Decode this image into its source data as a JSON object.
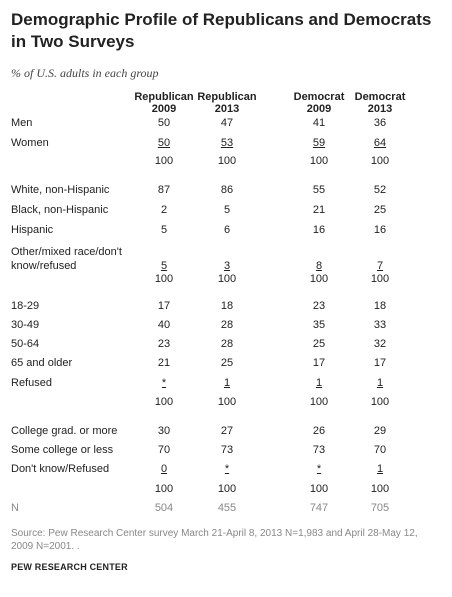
{
  "chart_data": {
    "type": "table",
    "title": "Demographic Profile of Republicans and Democrats in Two Surveys",
    "subtitle": "% of U.S. adults in each group",
    "columns": [
      {
        "line1": "Republican",
        "line2": "2009"
      },
      {
        "line1": "Republican",
        "line2": "2013"
      },
      {
        "line1": "Democrat",
        "line2": "2009"
      },
      {
        "line1": "Democrat",
        "line2": "2013"
      }
    ],
    "rows": [
      {
        "label": "Men",
        "values": [
          "50",
          "47",
          "41",
          "36"
        ]
      },
      {
        "label": "Women",
        "values": [
          "50",
          "53",
          "59",
          "64"
        ],
        "underline": true
      },
      {
        "label": "",
        "values": [
          "100",
          "100",
          "100",
          "100"
        ]
      },
      {
        "label": "White, non-Hispanic",
        "values": [
          "87",
          "86",
          "55",
          "52"
        ]
      },
      {
        "label": "Black, non-Hispanic",
        "values": [
          "2",
          "5",
          "21",
          "25"
        ]
      },
      {
        "label": "Hispanic",
        "values": [
          "5",
          "6",
          "16",
          "16"
        ]
      },
      {
        "label": "Other/mixed race/don't",
        "label2": "know/refused",
        "values": [
          "5",
          "3",
          "8",
          "7"
        ],
        "underline": true
      },
      {
        "label": "",
        "values": [
          "100",
          "100",
          "100",
          "100"
        ]
      },
      {
        "label": "18-29",
        "values": [
          "17",
          "18",
          "23",
          "18"
        ]
      },
      {
        "label": "30-49",
        "values": [
          "40",
          "28",
          "35",
          "33"
        ]
      },
      {
        "label": "50-64",
        "values": [
          "23",
          "28",
          "25",
          "32"
        ]
      },
      {
        "label": "65 and older",
        "values": [
          "21",
          "25",
          "17",
          "17"
        ]
      },
      {
        "label": "Refused",
        "values": [
          "*",
          "1",
          "1",
          "1"
        ],
        "underline": true
      },
      {
        "label": "",
        "values": [
          "100",
          "100",
          "100",
          "100"
        ]
      },
      {
        "label": "College grad. or more",
        "values": [
          "30",
          "27",
          "26",
          "29"
        ]
      },
      {
        "label": "Some college or less",
        "values": [
          "70",
          "73",
          "73",
          "70"
        ]
      },
      {
        "label": "Don't know/Refused",
        "values": [
          "0",
          "*",
          "*",
          "1"
        ],
        "underline": true
      },
      {
        "label": "",
        "values": [
          "100",
          "100",
          "100",
          "100"
        ]
      },
      {
        "label": "N",
        "values": [
          "504",
          "455",
          "747",
          "705"
        ],
        "muted": true
      }
    ],
    "source": "Source: Pew Research Center survey March 21-April 8, 2013 N=1,983 and April 28-May 12, 2009 N=2001. .",
    "organization": "PEW RESEARCH CENTER"
  }
}
